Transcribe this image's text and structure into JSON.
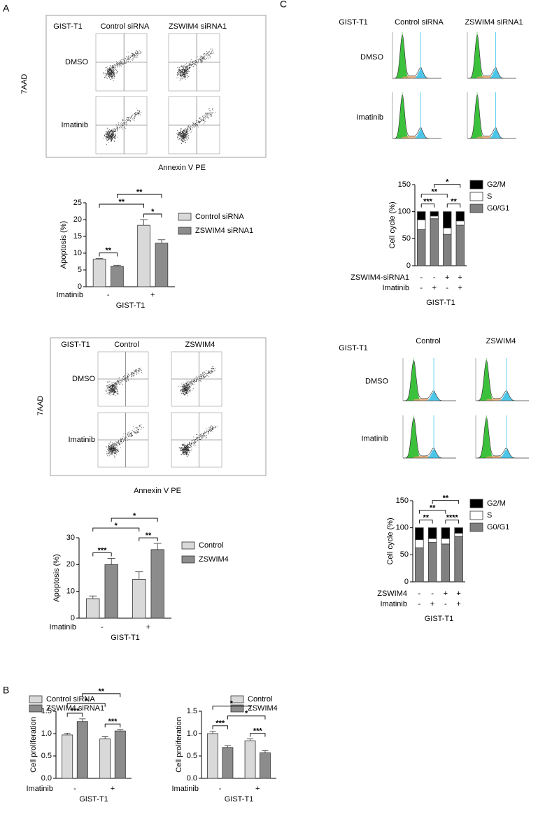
{
  "panel_labels": [
    "A",
    "B",
    "C"
  ],
  "flow_panels": [
    {
      "cell_line": "GIST-T1",
      "columns": [
        "Control siRNA",
        "ZSWIM4 siRNA1"
      ],
      "rows": [
        "DMSO",
        "Imatinib"
      ],
      "y_label": "7AAD",
      "x_label": "Annexin V PE"
    },
    {
      "cell_line": "GIST-T1",
      "columns": [
        "Control",
        "ZSWIM4"
      ],
      "rows": [
        "DMSO",
        "Imatinib"
      ],
      "y_label": "7AAD",
      "x_label": "Annexin V PE"
    }
  ],
  "cycle_panels": [
    {
      "cell_line": "GIST-T1",
      "columns": [
        "Control siRNA",
        "ZSWIM4 siRNA1"
      ],
      "rows": [
        "DMSO",
        "Imatinib"
      ]
    },
    {
      "cell_line": "GIST-T1",
      "columns": [
        "Control",
        "ZSWIM4"
      ],
      "rows": [
        "DMSO",
        "Imatinib"
      ]
    }
  ],
  "chart_data": [
    {
      "type": "bar",
      "ylabel": "Apoptosis (%)",
      "xlabel": "GIST-T1",
      "category_axis_label": "Imatinib",
      "categories": [
        "-",
        "+"
      ],
      "series": [
        {
          "name": "Control siRNA",
          "color": "#d9d9d9",
          "values": [
            8.2,
            18.3
          ],
          "errors": [
            0.2,
            1.7
          ]
        },
        {
          "name": "ZSWIM4 siRNA1",
          "color": "#8c8c8c",
          "values": [
            6.1,
            13
          ],
          "errors": [
            0.3,
            1.0
          ]
        }
      ],
      "ylim": [
        0,
        25
      ],
      "yticks": [
        0,
        5,
        10,
        15,
        20,
        25
      ],
      "annotations": [
        {
          "label": "**",
          "between": [
            [
              0,
              0
            ],
            [
              1,
              0
            ]
          ]
        },
        {
          "label": "*",
          "between": [
            [
              0,
              1
            ],
            [
              1,
              1
            ]
          ]
        },
        {
          "label": "**",
          "between": [
            [
              0,
              0
            ],
            [
              0,
              1
            ]
          ]
        },
        {
          "label": "**",
          "between": [
            [
              1,
              0
            ],
            [
              1,
              1
            ]
          ]
        }
      ]
    },
    {
      "type": "bar",
      "ylabel": "Apoptosis (%)",
      "xlabel": "GIST-T1",
      "category_axis_label": "Imatinib",
      "categories": [
        "-",
        "+"
      ],
      "series": [
        {
          "name": "Control",
          "color": "#d9d9d9",
          "values": [
            7.3,
            14.5
          ],
          "errors": [
            1.0,
            2.8
          ]
        },
        {
          "name": "ZSWIM4",
          "color": "#8c8c8c",
          "values": [
            20,
            25.6
          ],
          "errors": [
            2.3,
            2.3
          ]
        }
      ],
      "ylim": [
        0,
        30
      ],
      "yticks": [
        0,
        10,
        20,
        30
      ],
      "annotations": [
        {
          "label": "***",
          "between": [
            [
              0,
              0
            ],
            [
              1,
              0
            ]
          ]
        },
        {
          "label": "**",
          "between": [
            [
              0,
              1
            ],
            [
              1,
              1
            ]
          ]
        },
        {
          "label": "*",
          "between": [
            [
              0,
              0
            ],
            [
              0,
              1
            ]
          ]
        },
        {
          "label": "*",
          "between": [
            [
              1,
              0
            ],
            [
              1,
              1
            ]
          ]
        }
      ]
    },
    {
      "type": "bar",
      "ylabel": "Cell proliferation",
      "xlabel": "GIST-T1",
      "category_axis_label": "Imatinib",
      "categories": [
        "-",
        "+"
      ],
      "series": [
        {
          "name": "Control siRNA",
          "color": "#d9d9d9",
          "values": [
            0.97,
            0.88
          ],
          "errors": [
            0.04,
            0.05
          ]
        },
        {
          "name": "ZSWIM4 siRNA1",
          "color": "#8c8c8c",
          "values": [
            1.27,
            1.06
          ],
          "errors": [
            0.06,
            0.03
          ]
        }
      ],
      "ylim": [
        0,
        1.5
      ],
      "yticks": [
        {
          "value": 0,
          "label": "0.0"
        },
        0.5,
        {
          "value": 1,
          "label": "1.0"
        },
        1.5
      ],
      "annotations": [
        {
          "label": "***",
          "between": [
            [
              0,
              0
            ],
            [
              1,
              0
            ]
          ]
        },
        {
          "label": "***",
          "between": [
            [
              0,
              1
            ],
            [
              1,
              1
            ]
          ]
        },
        {
          "label": "*",
          "between": [
            [
              0,
              0
            ],
            [
              0,
              1
            ]
          ]
        },
        {
          "label": "**",
          "between": [
            [
              1,
              0
            ],
            [
              1,
              1
            ]
          ]
        }
      ]
    },
    {
      "type": "bar",
      "ylabel": "Cell proliferation",
      "xlabel": "GIST-T1",
      "category_axis_label": "Imatinib",
      "categories": [
        "-",
        "+"
      ],
      "series": [
        {
          "name": "Control",
          "color": "#d9d9d9",
          "values": [
            1.0,
            0.84
          ],
          "errors": [
            0.05,
            0.04
          ]
        },
        {
          "name": "ZSWIM4",
          "color": "#8c8c8c",
          "values": [
            0.69,
            0.57
          ],
          "errors": [
            0.04,
            0.05
          ]
        }
      ],
      "ylim": [
        0,
        1.5
      ],
      "yticks": [
        {
          "value": 0,
          "label": "0.0"
        },
        0.5,
        {
          "value": 1,
          "label": "1.0"
        },
        1.5
      ],
      "annotations": [
        {
          "label": "***",
          "between": [
            [
              0,
              0
            ],
            [
              1,
              0
            ]
          ]
        },
        {
          "label": "***",
          "between": [
            [
              0,
              1
            ],
            [
              1,
              1
            ]
          ]
        },
        {
          "label": "*",
          "between": [
            [
              1,
              0
            ],
            [
              1,
              1
            ]
          ]
        },
        {
          "label": "*",
          "between": [
            [
              0,
              0
            ],
            [
              0,
              1
            ]
          ]
        }
      ]
    },
    {
      "type": "stacked_bar",
      "ylabel": "Cell cycle (%)",
      "xlabel": "GIST-T1",
      "rows": [
        {
          "label": "ZSWIM4-siRNA1",
          "values": [
            "-",
            "-",
            "+",
            "+"
          ]
        },
        {
          "label": "Imatinib",
          "values": [
            "-",
            "+",
            "-",
            "+"
          ]
        }
      ],
      "series": [
        {
          "name": "G0/G1",
          "color": "#808080",
          "values": [
            67,
            87,
            58,
            75
          ]
        },
        {
          "name": "S",
          "color": "#ffffff",
          "values": [
            18,
            5,
            12,
            8
          ]
        },
        {
          "name": "G2/M",
          "color": "#000000",
          "values": [
            15,
            8,
            30,
            17
          ]
        }
      ],
      "ylim": [
        0,
        150
      ],
      "yticks": [
        0,
        50,
        100,
        150
      ],
      "annotations": [
        {
          "label": "***",
          "between": [
            0,
            1
          ]
        },
        {
          "label": "**",
          "between": [
            2,
            3
          ]
        },
        {
          "label": "**",
          "between": [
            0,
            2
          ]
        },
        {
          "label": "*",
          "between": [
            1,
            3
          ]
        }
      ]
    },
    {
      "type": "stacked_bar",
      "ylabel": "Cell cycle (%)",
      "xlabel": "GIST-T1",
      "rows": [
        {
          "label": "ZSWIM4",
          "values": [
            "-",
            "-",
            "+",
            "+"
          ]
        },
        {
          "label": "Imatinib",
          "values": [
            "-",
            "+",
            "-",
            "+"
          ]
        }
      ],
      "series": [
        {
          "name": "G0/G1",
          "color": "#808080",
          "values": [
            63,
            73,
            70,
            84
          ]
        },
        {
          "name": "S",
          "color": "#ffffff",
          "values": [
            15,
            7,
            10,
            6
          ]
        },
        {
          "name": "G2/M",
          "color": "#000000",
          "values": [
            22,
            20,
            20,
            10
          ]
        }
      ],
      "ylim": [
        0,
        150
      ],
      "yticks": [
        0,
        50,
        100,
        150
      ],
      "annotations": [
        {
          "label": "**",
          "between": [
            0,
            1
          ]
        },
        {
          "label": "****",
          "between": [
            2,
            3
          ]
        },
        {
          "label": "**",
          "between": [
            0,
            2
          ]
        },
        {
          "label": "**",
          "between": [
            1,
            3
          ]
        }
      ]
    }
  ]
}
